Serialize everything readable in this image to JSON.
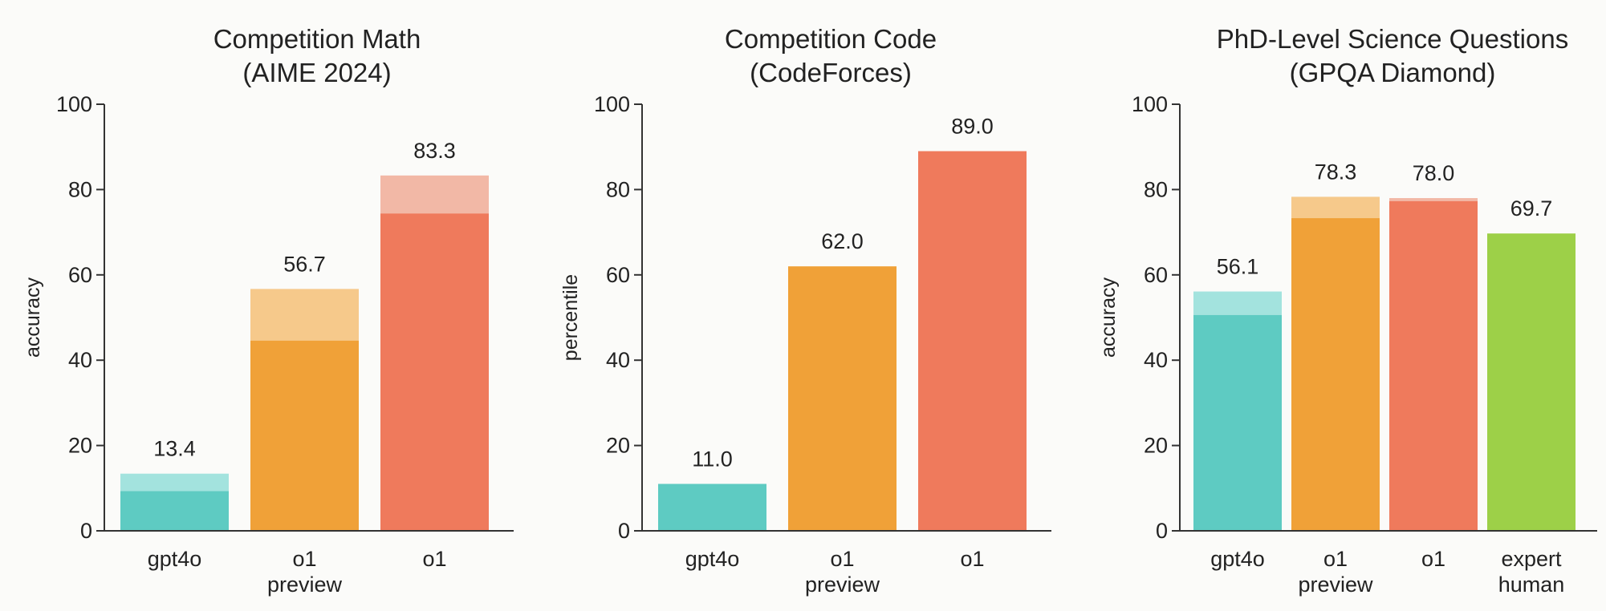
{
  "colors": {
    "gpt4o": "#5ecbc2",
    "gpt4o_light": "#a3e3de",
    "o1_preview": "#f0a138",
    "o1_preview_light": "#f6c98b",
    "o1": "#ef7a5c",
    "o1_light": "#f2b8a6",
    "expert_human": "#9dd048"
  },
  "chart_data": [
    {
      "type": "bar",
      "title": [
        "Competition Math",
        "(AIME 2024)"
      ],
      "ylabel": "accuracy",
      "ylim": [
        0,
        100
      ],
      "yticks": [
        0,
        20,
        40,
        60,
        80,
        100
      ],
      "grid": false,
      "categories": [
        [
          "gpt4o"
        ],
        [
          "o1",
          "preview"
        ],
        [
          "o1"
        ]
      ],
      "series": [
        {
          "values": [
            9.3,
            44.6,
            74.4
          ]
        },
        {
          "values": [
            13.4,
            56.7,
            83.3
          ]
        }
      ],
      "data_labels": [
        "13.4",
        "56.7",
        "83.3"
      ],
      "color_keys": [
        "gpt4o",
        "o1_preview",
        "o1"
      ]
    },
    {
      "type": "bar",
      "title": [
        "Competition Code",
        "(CodeForces)"
      ],
      "ylabel": "percentile",
      "ylim": [
        0,
        100
      ],
      "yticks": [
        0,
        20,
        40,
        60,
        80,
        100
      ],
      "grid": false,
      "categories": [
        [
          "gpt4o"
        ],
        [
          "o1",
          "preview"
        ],
        [
          "o1"
        ]
      ],
      "series": [
        {
          "values": [
            11.0,
            62.0,
            89.0
          ]
        }
      ],
      "data_labels": [
        "11.0",
        "62.0",
        "89.0"
      ],
      "color_keys": [
        "gpt4o",
        "o1_preview",
        "o1"
      ]
    },
    {
      "type": "bar",
      "title": [
        "PhD-Level Science Questions",
        "(GPQA Diamond)"
      ],
      "ylabel": "accuracy",
      "ylim": [
        0,
        100
      ],
      "yticks": [
        0,
        20,
        40,
        60,
        80,
        100
      ],
      "grid": false,
      "categories": [
        [
          "gpt4o"
        ],
        [
          "o1",
          "preview"
        ],
        [
          "o1"
        ],
        [
          "expert",
          "human"
        ]
      ],
      "series": [
        {
          "values": [
            50.6,
            73.3,
            77.3,
            69.7
          ]
        },
        {
          "values": [
            56.1,
            78.3,
            78.0,
            69.7
          ]
        }
      ],
      "data_labels": [
        "56.1",
        "78.3",
        "78.0",
        "69.7"
      ],
      "color_keys": [
        "gpt4o",
        "o1_preview",
        "o1",
        "expert_human"
      ]
    }
  ]
}
